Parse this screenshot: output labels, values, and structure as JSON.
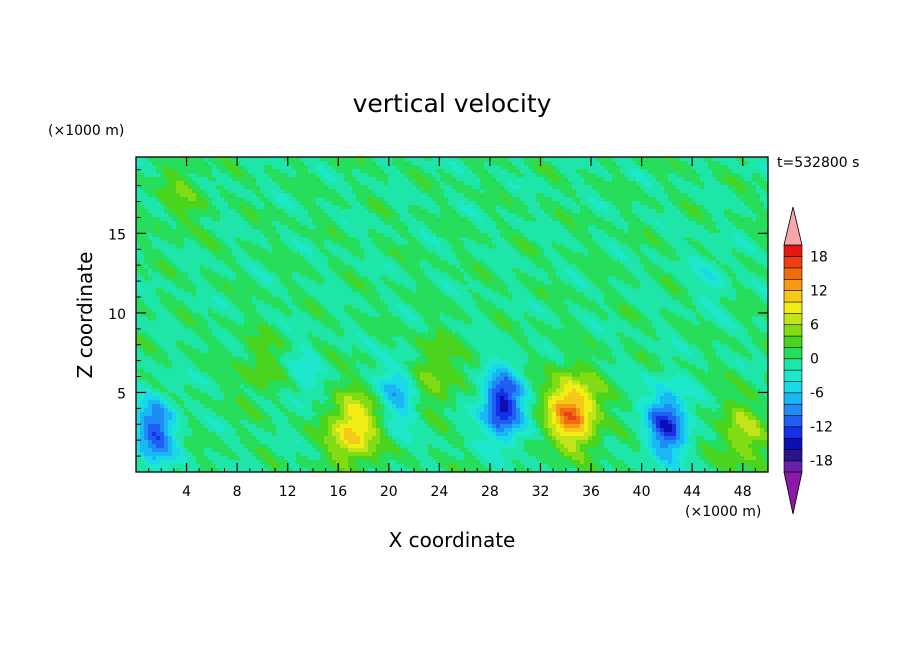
{
  "chart_data": {
    "type": "heatmap",
    "title": "vertical velocity",
    "xlabel": "X coordinate",
    "ylabel": "Z coordinate",
    "x_unit": "(×1000 m)",
    "y_unit": "(×1000 m)",
    "time_label": "t=532800 s",
    "xlim": [
      0,
      50
    ],
    "ylim": [
      0,
      19.8
    ],
    "x_ticks": [
      4,
      8,
      12,
      16,
      20,
      24,
      28,
      32,
      36,
      40,
      44,
      48
    ],
    "y_ticks": [
      5,
      10,
      15
    ],
    "colorbar": {
      "ticks": [
        18,
        12,
        6,
        0,
        -6,
        -12,
        -18
      ],
      "min": -20,
      "max": 20,
      "levels": [
        -20,
        -18,
        -16,
        -14,
        -12,
        -10,
        -8,
        -6,
        -4,
        -2,
        0,
        2,
        4,
        6,
        8,
        10,
        12,
        14,
        16,
        18,
        20
      ],
      "colors": [
        "#6a1fa8",
        "#2a148c",
        "#0b0fb4",
        "#1530e6",
        "#1e5ef2",
        "#1f8cf6",
        "#1ab8f2",
        "#19d8ea",
        "#1de8cc",
        "#1ee6a8",
        "#27de5c",
        "#4ad41e",
        "#82dc14",
        "#c4e41a",
        "#f0ee14",
        "#f6c818",
        "#f59a12",
        "#f06c10",
        "#ec4010",
        "#e41a12"
      ],
      "under_color": "#8c18a6",
      "over_color": "#f6a8a8"
    },
    "features": [
      {
        "kind": "updraft",
        "x": 17.2,
        "z": 2.7,
        "peak": 11
      },
      {
        "kind": "updraft",
        "x": 34.5,
        "z": 3.8,
        "peak": 15
      },
      {
        "kind": "updraft",
        "x": 48.0,
        "z": 2.4,
        "peak": 6
      },
      {
        "kind": "updraft",
        "x": 10.0,
        "z": 6.5,
        "peak": 3.5
      },
      {
        "kind": "updraft",
        "x": 23.5,
        "z": 6.3,
        "peak": 5
      },
      {
        "kind": "updraft",
        "x": 3.5,
        "z": 17.5,
        "peak": 3
      },
      {
        "kind": "downdraft",
        "x": 1.5,
        "z": 2.5,
        "peak": -11
      },
      {
        "kind": "downdraft",
        "x": 29.0,
        "z": 4.2,
        "peak": -15
      },
      {
        "kind": "downdraft",
        "x": 42.0,
        "z": 3.0,
        "peak": -13
      },
      {
        "kind": "downdraft",
        "x": 20.8,
        "z": 5.0,
        "peak": -7
      },
      {
        "kind": "downdraft",
        "x": 13.0,
        "z": 6.0,
        "peak": -3
      },
      {
        "kind": "downdraft",
        "x": 45.5,
        "z": 12.5,
        "peak": -2.5
      }
    ]
  }
}
